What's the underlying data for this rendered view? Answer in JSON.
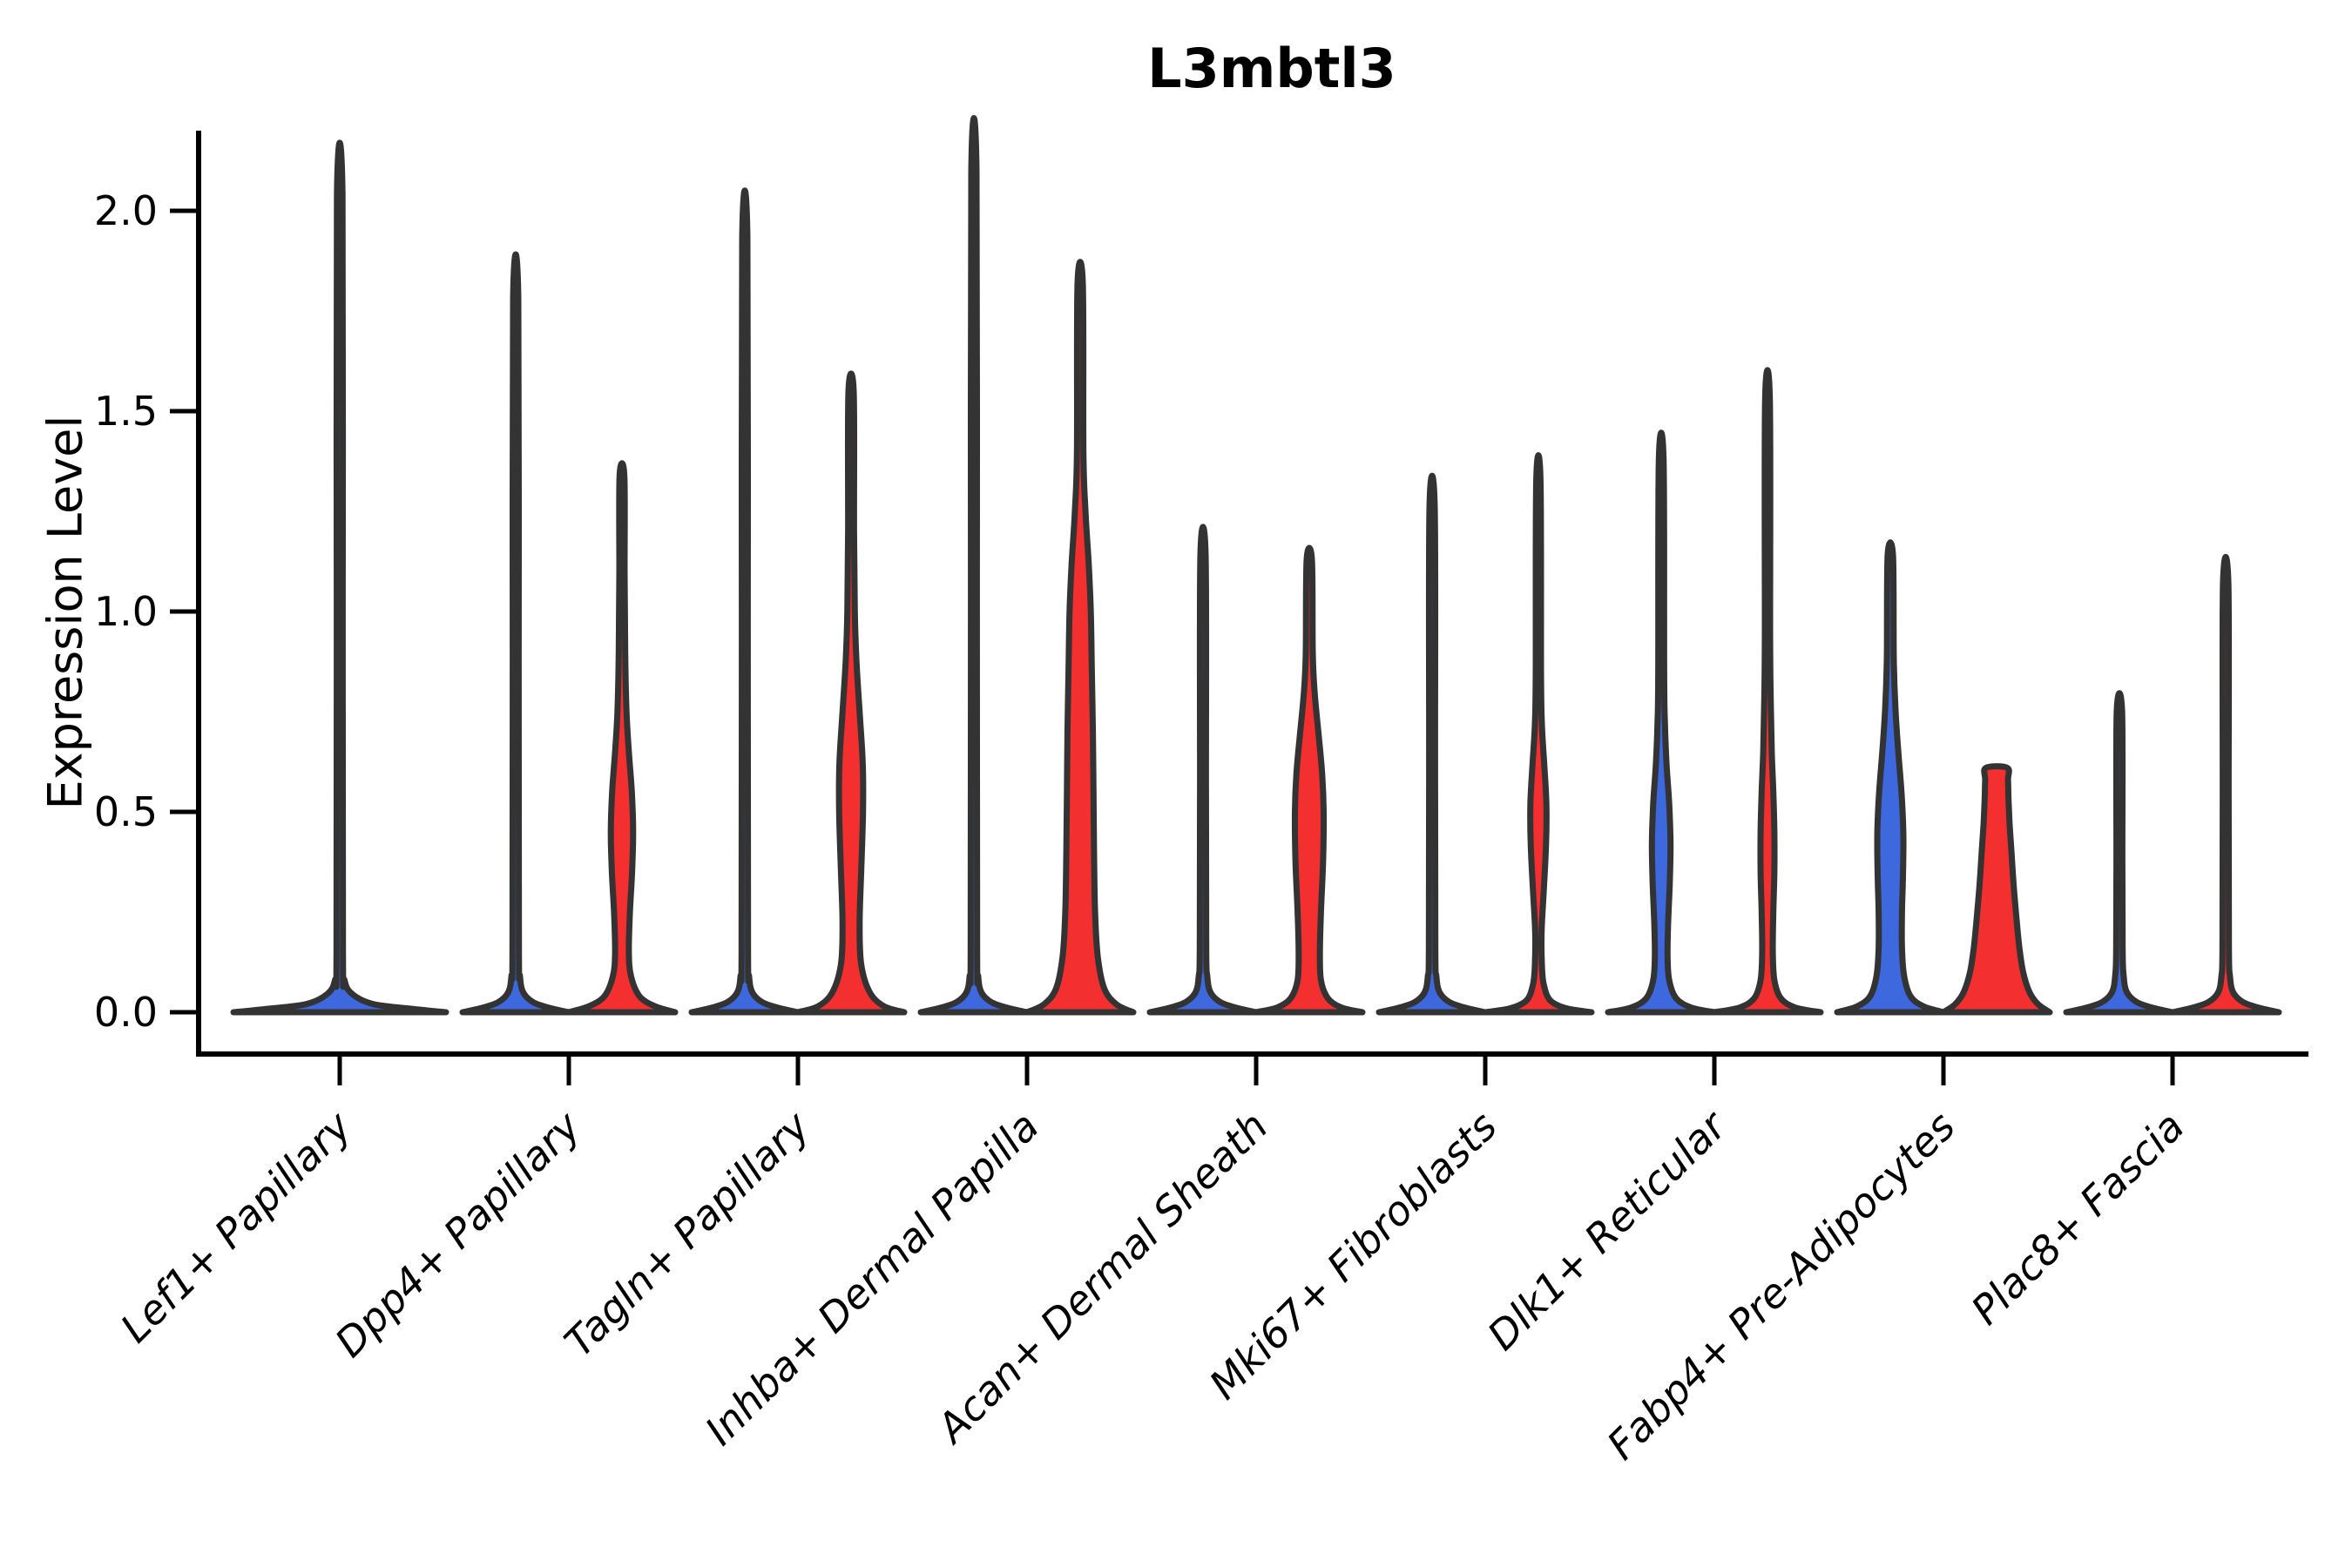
{
  "title": "L3mbtl3",
  "y_axis": {
    "label": "Expression Level",
    "tick_labels": [
      "0.0",
      "0.5",
      "1.0",
      "1.5",
      "2.0"
    ]
  },
  "colors": {
    "red": "#F42F2F",
    "blue": "#3E68DD",
    "violin_outline": "#333333",
    "axis": "#000000",
    "background": "#ffffff"
  },
  "chart_data": {
    "type": "violin",
    "title": "L3mbtl3",
    "ylabel": "Expression Level",
    "xlabel": "",
    "y_ticks": [
      0.0,
      0.5,
      1.0,
      1.5,
      2.0
    ],
    "ylim_drawn": [
      -0.104,
      2.2
    ],
    "grid": false,
    "legend": "none",
    "group_colors": {
      "blue": "#3E68DD",
      "red": "#F42F2F"
    },
    "categories": [
      {
        "label": "Lef1+ Papillary",
        "violins": [
          {
            "group": "single",
            "fill": "blue",
            "offset": 0,
            "width_slots": 2,
            "max": 2.04,
            "profile": [
              [
                0,
                1.0
              ],
              [
                0.008,
                0.7
              ],
              [
                0.02,
                0.32
              ],
              [
                0.045,
                0.12
              ],
              [
                0.08,
                0.045
              ],
              [
                0.15,
                0.03
              ],
              [
                1.0,
                0.028
              ],
              [
                2.04,
                0.026
              ]
            ]
          }
        ]
      },
      {
        "label": "Dpp4+ Papillary",
        "violins": [
          {
            "group": "A",
            "fill": "blue",
            "offset": -1,
            "width_slots": 1,
            "max": 1.78,
            "profile": [
              [
                0,
                1.0
              ],
              [
                0.01,
                0.66
              ],
              [
                0.025,
                0.33
              ],
              [
                0.05,
                0.14
              ],
              [
                0.09,
                0.08
              ],
              [
                0.16,
                0.06
              ],
              [
                0.89,
                0.055
              ],
              [
                1.78,
                0.05
              ]
            ]
          },
          {
            "group": "B",
            "fill": "red",
            "offset": 1,
            "width_slots": 1,
            "max": 1.34,
            "profile": [
              [
                0,
                1.0
              ],
              [
                0.015,
                0.62
              ],
              [
                0.04,
                0.33
              ],
              [
                0.09,
                0.17
              ],
              [
                0.15,
                0.13
              ],
              [
                0.25,
                0.15
              ],
              [
                0.35,
                0.19
              ],
              [
                0.45,
                0.21
              ],
              [
                0.55,
                0.185
              ],
              [
                0.65,
                0.13
              ],
              [
                0.75,
                0.085
              ],
              [
                0.9,
                0.06
              ],
              [
                1.1,
                0.05
              ],
              [
                1.34,
                0.045
              ]
            ]
          }
        ]
      },
      {
        "label": "Tagln+ Papillary",
        "violins": [
          {
            "group": "A",
            "fill": "blue",
            "offset": -1,
            "width_slots": 1,
            "max": 1.93,
            "profile": [
              [
                0,
                1.0
              ],
              [
                0.01,
                0.66
              ],
              [
                0.025,
                0.33
              ],
              [
                0.05,
                0.14
              ],
              [
                0.09,
                0.08
              ],
              [
                0.16,
                0.06
              ],
              [
                0.965,
                0.055
              ],
              [
                1.93,
                0.05
              ]
            ]
          },
          {
            "group": "B",
            "fill": "red",
            "offset": 1,
            "width_slots": 1,
            "max": 1.55,
            "profile": [
              [
                0,
                1.0
              ],
              [
                0.015,
                0.62
              ],
              [
                0.05,
                0.35
              ],
              [
                0.12,
                0.19
              ],
              [
                0.22,
                0.16
              ],
              [
                0.35,
                0.19
              ],
              [
                0.5,
                0.225
              ],
              [
                0.62,
                0.22
              ],
              [
                0.75,
                0.16
              ],
              [
                0.88,
                0.1
              ],
              [
                1.0,
                0.07
              ],
              [
                1.2,
                0.055
              ],
              [
                1.55,
                0.05
              ]
            ]
          }
        ]
      },
      {
        "label": "Inhba+ Dermal Papilla",
        "violins": [
          {
            "group": "A",
            "fill": "blue",
            "offset": -1,
            "width_slots": 1,
            "max": 2.1,
            "profile": [
              [
                0,
                1.0
              ],
              [
                0.01,
                0.66
              ],
              [
                0.025,
                0.33
              ],
              [
                0.05,
                0.14
              ],
              [
                0.09,
                0.08
              ],
              [
                0.16,
                0.06
              ],
              [
                1.05,
                0.055
              ],
              [
                2.1,
                0.05
              ]
            ]
          },
          {
            "group": "B",
            "fill": "red",
            "offset": 1,
            "width_slots": 1,
            "max": 1.82,
            "profile": [
              [
                0,
                1.0
              ],
              [
                0.02,
                0.68
              ],
              [
                0.06,
                0.45
              ],
              [
                0.14,
                0.33
              ],
              [
                0.25,
                0.28
              ],
              [
                0.4,
                0.26
              ],
              [
                0.55,
                0.25
              ],
              [
                0.7,
                0.24
              ],
              [
                0.85,
                0.22
              ],
              [
                1.0,
                0.2
              ],
              [
                1.12,
                0.16
              ],
              [
                1.25,
                0.1
              ],
              [
                1.4,
                0.06
              ],
              [
                1.82,
                0.05
              ]
            ]
          }
        ]
      },
      {
        "label": "Acan+ Dermal Sheath",
        "violins": [
          {
            "group": "A",
            "fill": "blue",
            "offset": -1,
            "width_slots": 1,
            "max": 1.14,
            "profile": [
              [
                0,
                1.0
              ],
              [
                0.01,
                0.66
              ],
              [
                0.025,
                0.33
              ],
              [
                0.05,
                0.14
              ],
              [
                0.09,
                0.08
              ],
              [
                0.16,
                0.06
              ],
              [
                0.57,
                0.055
              ],
              [
                1.14,
                0.05
              ]
            ]
          },
          {
            "group": "B",
            "fill": "red",
            "offset": 1,
            "width_slots": 1,
            "max": 1.13,
            "profile": [
              [
                0,
                1.0
              ],
              [
                0.012,
                0.6
              ],
              [
                0.035,
                0.35
              ],
              [
                0.08,
                0.22
              ],
              [
                0.15,
                0.2
              ],
              [
                0.25,
                0.22
              ],
              [
                0.38,
                0.26
              ],
              [
                0.5,
                0.27
              ],
              [
                0.6,
                0.24
              ],
              [
                0.7,
                0.17
              ],
              [
                0.8,
                0.1
              ],
              [
                0.9,
                0.065
              ],
              [
                1.13,
                0.05
              ]
            ]
          }
        ]
      },
      {
        "label": "Mki67+ Fibroblasts",
        "violins": [
          {
            "group": "A",
            "fill": "blue",
            "offset": -1,
            "width_slots": 1,
            "max": 1.26,
            "profile": [
              [
                0,
                1.0
              ],
              [
                0.01,
                0.66
              ],
              [
                0.025,
                0.33
              ],
              [
                0.05,
                0.14
              ],
              [
                0.09,
                0.08
              ],
              [
                0.16,
                0.06
              ],
              [
                0.63,
                0.055
              ],
              [
                1.26,
                0.05
              ]
            ]
          },
          {
            "group": "B",
            "fill": "red",
            "offset": 1,
            "width_slots": 1,
            "max": 1.33,
            "profile": [
              [
                0,
                1.0
              ],
              [
                0.01,
                0.52
              ],
              [
                0.03,
                0.22
              ],
              [
                0.07,
                0.1
              ],
              [
                0.12,
                0.065
              ],
              [
                0.2,
                0.06
              ],
              [
                0.3,
                0.1
              ],
              [
                0.42,
                0.145
              ],
              [
                0.52,
                0.15
              ],
              [
                0.62,
                0.11
              ],
              [
                0.72,
                0.065
              ],
              [
                0.85,
                0.05
              ],
              [
                1.33,
                0.04
              ]
            ]
          }
        ]
      },
      {
        "label": "Dlk1+ Reticular",
        "violins": [
          {
            "group": "A",
            "fill": "blue",
            "offset": -1,
            "width_slots": 1,
            "max": 1.38,
            "profile": [
              [
                0,
                1.0
              ],
              [
                0.012,
                0.56
              ],
              [
                0.035,
                0.28
              ],
              [
                0.08,
                0.15
              ],
              [
                0.14,
                0.12
              ],
              [
                0.22,
                0.13
              ],
              [
                0.32,
                0.16
              ],
              [
                0.42,
                0.175
              ],
              [
                0.52,
                0.15
              ],
              [
                0.62,
                0.1
              ],
              [
                0.72,
                0.07
              ],
              [
                0.85,
                0.055
              ],
              [
                1.38,
                0.045
              ]
            ]
          },
          {
            "group": "B",
            "fill": "red",
            "offset": 1,
            "width_slots": 1,
            "max": 1.53,
            "profile": [
              [
                0,
                1.0
              ],
              [
                0.012,
                0.52
              ],
              [
                0.035,
                0.25
              ],
              [
                0.08,
                0.13
              ],
              [
                0.15,
                0.1
              ],
              [
                0.25,
                0.11
              ],
              [
                0.35,
                0.13
              ],
              [
                0.45,
                0.13
              ],
              [
                0.55,
                0.11
              ],
              [
                0.65,
                0.08
              ],
              [
                0.78,
                0.06
              ],
              [
                0.95,
                0.05
              ],
              [
                1.53,
                0.045
              ]
            ]
          }
        ]
      },
      {
        "label": "Fabp4+ Pre-Adipocytes",
        "violins": [
          {
            "group": "A",
            "fill": "blue",
            "offset": -1,
            "width_slots": 1,
            "max": 1.14,
            "profile": [
              [
                0,
                1.0
              ],
              [
                0.015,
                0.62
              ],
              [
                0.04,
                0.38
              ],
              [
                0.09,
                0.26
              ],
              [
                0.16,
                0.22
              ],
              [
                0.25,
                0.22
              ],
              [
                0.35,
                0.24
              ],
              [
                0.45,
                0.245
              ],
              [
                0.55,
                0.21
              ],
              [
                0.65,
                0.15
              ],
              [
                0.75,
                0.1
              ],
              [
                0.88,
                0.065
              ],
              [
                1.14,
                0.05
              ]
            ]
          },
          {
            "group": "B",
            "fill": "red",
            "offset": 1,
            "width_slots": 1,
            "max": 0.61,
            "profile": [
              [
                0,
                1.0
              ],
              [
                0.02,
                0.78
              ],
              [
                0.05,
                0.62
              ],
              [
                0.1,
                0.5
              ],
              [
                0.16,
                0.43
              ],
              [
                0.24,
                0.37
              ],
              [
                0.32,
                0.32
              ],
              [
                0.4,
                0.28
              ],
              [
                0.47,
                0.245
              ],
              [
                0.53,
                0.225
              ],
              [
                0.58,
                0.215
              ],
              [
                0.61,
                0.2
              ]
            ]
          }
        ]
      },
      {
        "label": "Plac8+ Fascia",
        "violins": [
          {
            "group": "A",
            "fill": "blue",
            "offset": -1,
            "width_slots": 1,
            "max": 0.75,
            "profile": [
              [
                0,
                1.0
              ],
              [
                0.01,
                0.66
              ],
              [
                0.025,
                0.33
              ],
              [
                0.05,
                0.14
              ],
              [
                0.09,
                0.08
              ],
              [
                0.16,
                0.06
              ],
              [
                0.38,
                0.055
              ],
              [
                0.75,
                0.05
              ]
            ]
          },
          {
            "group": "B",
            "fill": "red",
            "offset": 1,
            "width_slots": 1,
            "max": 1.07,
            "profile": [
              [
                0,
                1.0
              ],
              [
                0.01,
                0.66
              ],
              [
                0.025,
                0.33
              ],
              [
                0.05,
                0.14
              ],
              [
                0.09,
                0.08
              ],
              [
                0.16,
                0.06
              ],
              [
                0.54,
                0.055
              ],
              [
                1.07,
                0.05
              ]
            ]
          }
        ]
      }
    ]
  }
}
